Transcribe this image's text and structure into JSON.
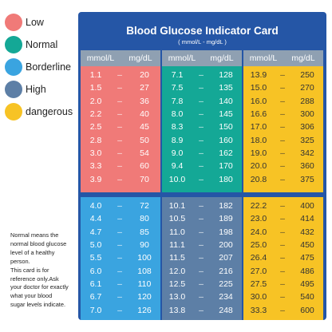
{
  "legend": [
    {
      "label": "Low",
      "color": "#f07a78"
    },
    {
      "label": "Normal",
      "color": "#14a896"
    },
    {
      "label": "Borderline",
      "color": "#3aa4e0"
    },
    {
      "label": "High",
      "color": "#5d7fa6"
    },
    {
      "label": "dangerous",
      "color": "#f7c325"
    }
  ],
  "note": [
    "Normal means the",
    "normal blood glucose",
    "level of a healthy",
    "person.",
    "This card is for",
    "reference only.Ask",
    "your doctor for exactly",
    "what your blood",
    "sugar levels indicate."
  ],
  "card": {
    "title": "Blood Glucose Indicator Card",
    "subtitle": "( mmol/L - mg/dL )",
    "unit_a": "mmol/L",
    "unit_b": "mg/dL",
    "dash": "–"
  },
  "columns": [
    {
      "top": {
        "category": "low",
        "rows": [
          [
            "1.1",
            "20"
          ],
          [
            "1.5",
            "27"
          ],
          [
            "2.0",
            "36"
          ],
          [
            "2.2",
            "40"
          ],
          [
            "2.5",
            "45"
          ],
          [
            "2.8",
            "50"
          ],
          [
            "3.0",
            "54"
          ],
          [
            "3.3",
            "60"
          ],
          [
            "3.9",
            "70"
          ]
        ]
      },
      "bottom": {
        "category": "borderline",
        "rows": [
          [
            "4.0",
            "72"
          ],
          [
            "4.4",
            "80"
          ],
          [
            "4.7",
            "85"
          ],
          [
            "5.0",
            "90"
          ],
          [
            "5.5",
            "100"
          ],
          [
            "6.0",
            "108"
          ],
          [
            "6.1",
            "110"
          ],
          [
            "6.7",
            "120"
          ],
          [
            "7.0",
            "126"
          ]
        ]
      }
    },
    {
      "top": {
        "category": "normal",
        "rows": [
          [
            "7.1",
            "128"
          ],
          [
            "7.5",
            "135"
          ],
          [
            "7.8",
            "140"
          ],
          [
            "8.0",
            "145"
          ],
          [
            "8.3",
            "150"
          ],
          [
            "8.9",
            "160"
          ],
          [
            "9.0",
            "162"
          ],
          [
            "9.4",
            "170"
          ],
          [
            "10.0",
            "180"
          ]
        ]
      },
      "bottom": {
        "category": "high",
        "rows": [
          [
            "10.1",
            "182"
          ],
          [
            "10.5",
            "189"
          ],
          [
            "11.0",
            "198"
          ],
          [
            "11.1",
            "200"
          ],
          [
            "11.5",
            "207"
          ],
          [
            "12.0",
            "216"
          ],
          [
            "12.5",
            "225"
          ],
          [
            "13.0",
            "234"
          ],
          [
            "13.8",
            "248"
          ]
        ]
      }
    },
    {
      "top": {
        "category": "dangerous",
        "rows": [
          [
            "13.9",
            "250"
          ],
          [
            "15.0",
            "270"
          ],
          [
            "16.0",
            "288"
          ],
          [
            "16.6",
            "300"
          ],
          [
            "17.0",
            "306"
          ],
          [
            "18.0",
            "325"
          ],
          [
            "19.0",
            "342"
          ],
          [
            "20.0",
            "360"
          ],
          [
            "20.8",
            "375"
          ]
        ]
      },
      "bottom": {
        "category": "dangerous",
        "rows": [
          [
            "22.2",
            "400"
          ],
          [
            "23.0",
            "414"
          ],
          [
            "24.0",
            "432"
          ],
          [
            "25.0",
            "450"
          ],
          [
            "26.4",
            "475"
          ],
          [
            "27.0",
            "486"
          ],
          [
            "27.5",
            "495"
          ],
          [
            "30.0",
            "540"
          ],
          [
            "33.3",
            "600"
          ]
        ]
      }
    }
  ]
}
